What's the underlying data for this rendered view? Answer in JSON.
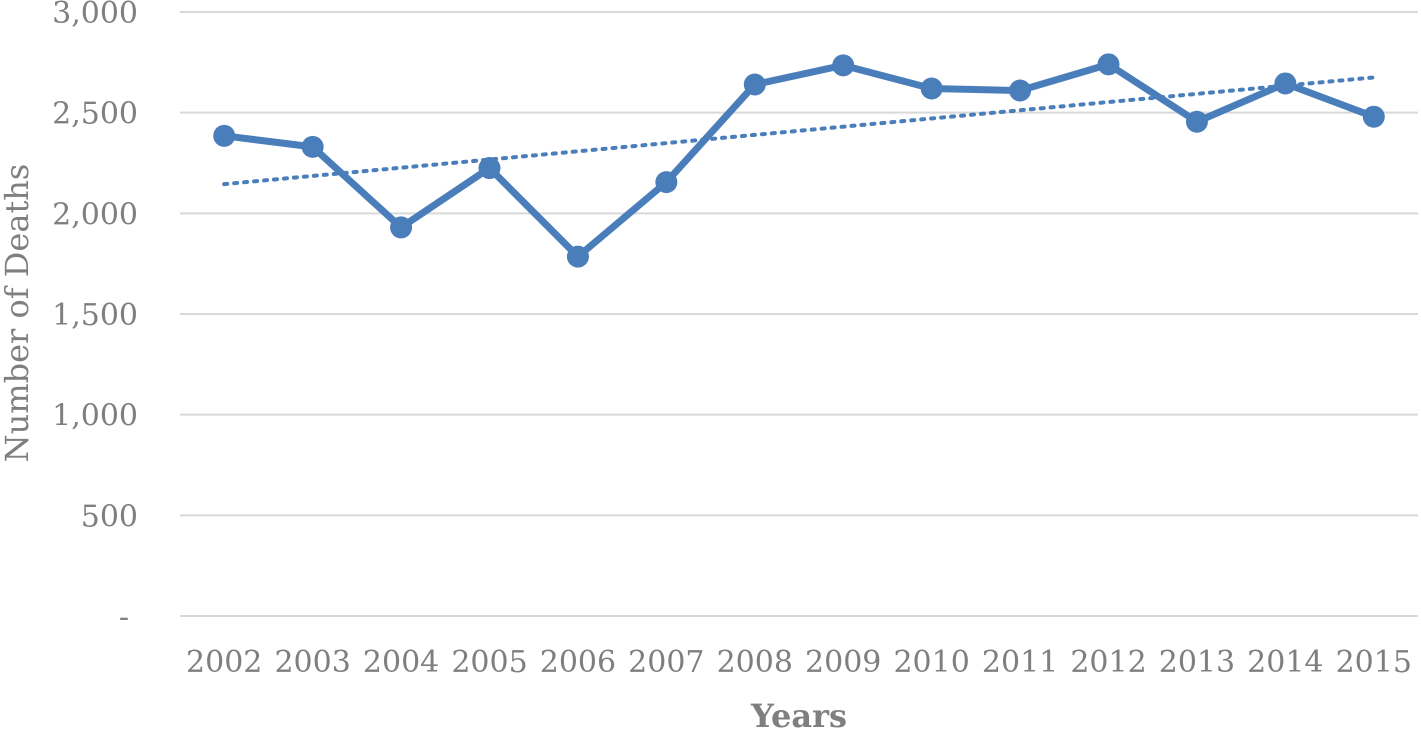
{
  "chart_data": {
    "type": "line",
    "title": "",
    "xlabel": "Years",
    "ylabel": "Number of Deaths",
    "categories": [
      "2002",
      "2003",
      "2004",
      "2005",
      "2006",
      "2007",
      "2008",
      "2009",
      "2010",
      "2011",
      "2012",
      "2013",
      "2014",
      "2015"
    ],
    "series": [
      {
        "values": [
          2385,
          2330,
          1930,
          2225,
          1785,
          2155,
          2640,
          2735,
          2620,
          2610,
          2740,
          2455,
          2645,
          2480
        ],
        "color": "#4a7ebb",
        "marker": "circle"
      }
    ],
    "trendline": {
      "style": "dotted",
      "type": "linear",
      "color": "#4a7ebb",
      "start_value": 2145,
      "end_value": 2675
    },
    "ylim": [
      0,
      3000
    ],
    "y_ticks": [
      {
        "value": 0,
        "label": "-"
      },
      {
        "value": 500,
        "label": "500"
      },
      {
        "value": 1000,
        "label": "1,000"
      },
      {
        "value": 1500,
        "label": "1,500"
      },
      {
        "value": 2000,
        "label": "2,000"
      },
      {
        "value": 2500,
        "label": "2,500"
      },
      {
        "value": 3000,
        "label": "3,000"
      }
    ],
    "grid": true,
    "legend": "none"
  }
}
